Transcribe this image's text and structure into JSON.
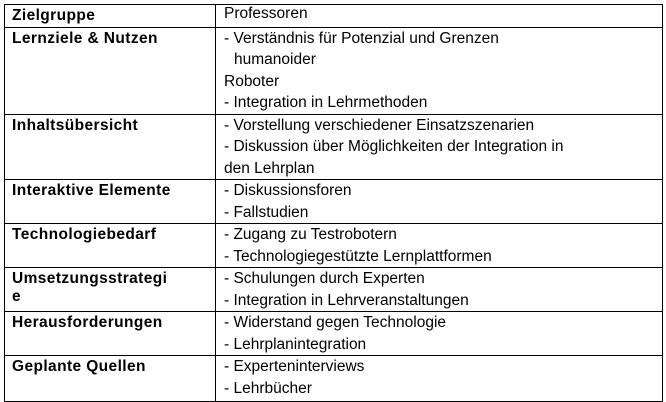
{
  "rows": [
    {
      "label": "Zielgruppe",
      "lines": [
        "Professoren"
      ]
    },
    {
      "label": "Lernziele & Nutzen",
      "lines": [
        "- Verständnis für Potenzial und Grenzen",
        "humanoider",
        "Roboter",
        "- Integration in Lehrmethoden"
      ]
    },
    {
      "label": "Inhaltsübersicht",
      "lines": [
        "- Vorstellung verschiedener Einsatzszenarien",
        "- Diskussion über Möglichkeiten der Integration in",
        "den Lehrplan"
      ]
    },
    {
      "label": "Interaktive Elemente",
      "lines": [
        "- Diskussionsforen",
        "- Fallstudien"
      ]
    },
    {
      "label": "Technologiebedarf",
      "lines": [
        "- Zugang zu Testrobotern",
        "- Technologiegestützte Lernplattformen"
      ]
    },
    {
      "label_lines": [
        "Umsetzungsstrategi",
        "e"
      ],
      "lines": [
        "- Schulungen durch Experten",
        "- Integration in Lehrveranstaltungen"
      ]
    },
    {
      "label": "Herausforderungen",
      "lines": [
        "- Widerstand gegen Technologie",
        "- Lehrplanintegration"
      ]
    },
    {
      "label": "Geplante Quellen",
      "lines": [
        "- Experteninterviews",
        "- Lehrbücher"
      ]
    }
  ]
}
